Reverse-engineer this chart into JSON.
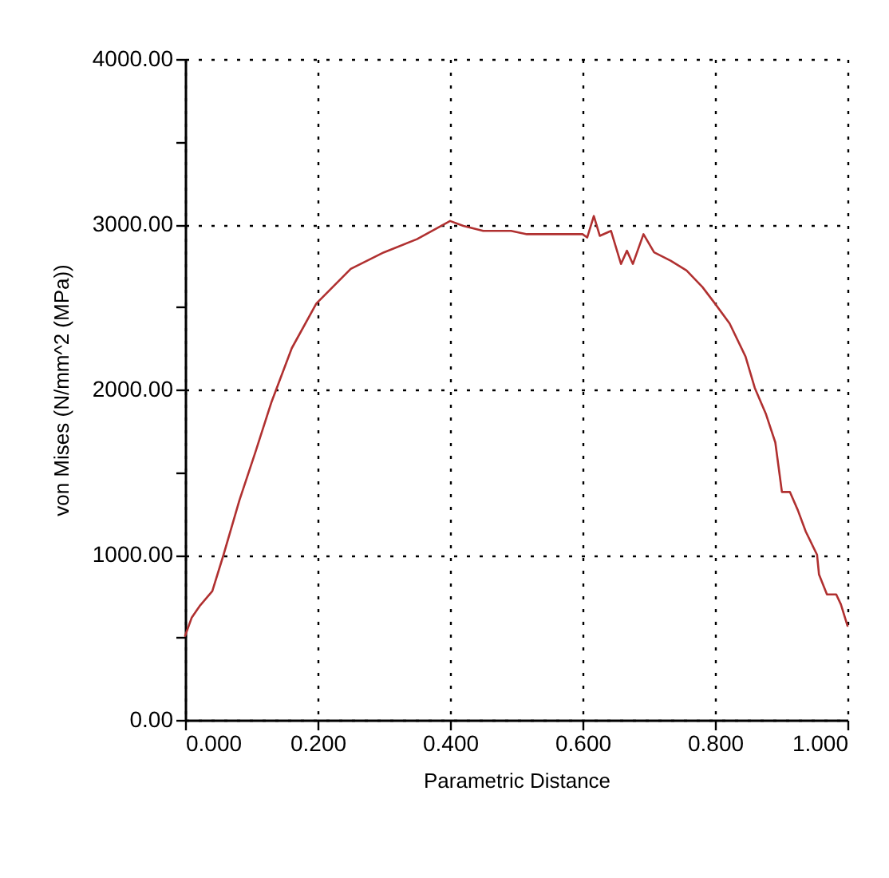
{
  "chart_data": {
    "type": "line",
    "xlabel": "Parametric Distance",
    "ylabel": "von Mises (N/mm^2 (MPa))",
    "xlim": [
      0,
      1
    ],
    "xticks": [
      {
        "value": 0,
        "label": "0.000"
      },
      {
        "value": 0.2,
        "label": "0.200"
      },
      {
        "value": 0.4,
        "label": "0.400"
      },
      {
        "value": 0.6,
        "label": "0.600"
      },
      {
        "value": 0.8,
        "label": "0.800"
      },
      {
        "value": 1,
        "label": "1.000"
      }
    ],
    "ylim": [
      0,
      4000
    ],
    "yticks": [
      {
        "value": 0,
        "label": "0.00"
      },
      {
        "value": 500,
        "label": null
      },
      {
        "value": 1000,
        "label": "1000.00"
      },
      {
        "value": 1500,
        "label": null
      },
      {
        "value": 2000,
        "label": "2000.00"
      },
      {
        "value": 2500,
        "label": null
      },
      {
        "value": 3000,
        "label": "3000.00"
      },
      {
        "value": 3500,
        "label": null
      },
      {
        "value": 4000,
        "label": "4000.00"
      }
    ],
    "grid": true,
    "marker": "none",
    "line_style": "solid",
    "series": [
      {
        "color": "#b03030",
        "x": [
          0,
          0.01,
          0.022,
          0.041,
          0.058,
          0.082,
          0.106,
          0.13,
          0.161,
          0.198,
          0.25,
          0.3,
          0.35,
          0.4,
          0.42,
          0.45,
          0.492,
          0.516,
          0.6,
          0.607,
          0.617,
          0.626,
          0.643,
          0.658,
          0.667,
          0.676,
          0.692,
          0.708,
          0.733,
          0.757,
          0.781,
          0.8,
          0.822,
          0.846,
          0.86,
          0.877,
          0.891,
          0.896,
          0.901,
          0.913,
          0.925,
          0.937,
          0.954,
          0.957,
          0.969,
          0.983,
          0.99,
          1
        ],
        "values": [
          510,
          620,
          690,
          780,
          1000,
          1330,
          1620,
          1920,
          2250,
          2520,
          2730,
          2830,
          2910,
          3020,
          2990,
          2960,
          2960,
          2940,
          2940,
          2920,
          3050,
          2930,
          2960,
          2760,
          2840,
          2760,
          2940,
          2830,
          2780,
          2720,
          2620,
          2520,
          2400,
          2200,
          2010,
          1850,
          1680,
          1530,
          1380,
          1380,
          1270,
          1140,
          1000,
          880,
          760,
          760,
          700,
          570
        ]
      }
    ]
  }
}
